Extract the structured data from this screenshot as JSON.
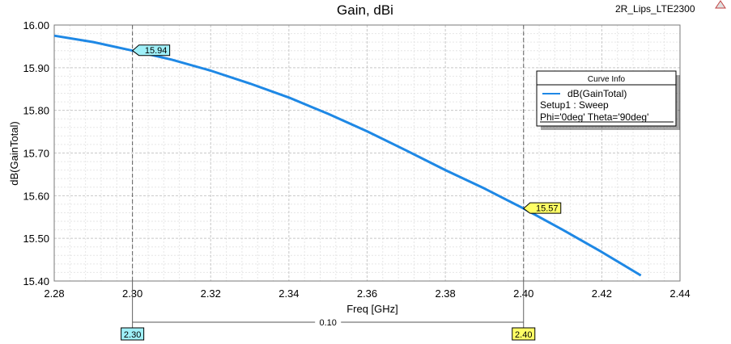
{
  "title": "Gain, dBi",
  "design_name": "2R_Lips_LTE2300",
  "colors": {
    "curve": "#1e88e5",
    "grid_major": "#c8c8c8",
    "grid_minor": "#e6e6e6",
    "marker_1_fill": "#9ff0f8",
    "marker_2_fill": "#ffff66"
  },
  "legend": {
    "header": "Curve Info",
    "curve_name": "dB(GainTotal)",
    "setup": "Setup1 : Sweep",
    "params": "Phi='0deg' Theta='90deg'"
  },
  "markers": [
    {
      "label": "15.94",
      "x": 2.3,
      "y": 15.94,
      "x_label": "2.30"
    },
    {
      "label": "15.57",
      "x": 2.4,
      "y": 15.57,
      "x_label": "2.40"
    }
  ],
  "delta": {
    "label": "0.10"
  },
  "chart_data": {
    "type": "line",
    "title": "Gain, dBi",
    "xlabel": "Freq [GHz]",
    "ylabel": "dB(GainTotal)",
    "xlim": [
      2.28,
      2.44
    ],
    "ylim": [
      15.4,
      16.0
    ],
    "x_ticks": [
      "2.28",
      "2.30",
      "2.32",
      "2.34",
      "2.36",
      "2.38",
      "2.40",
      "2.42",
      "2.44"
    ],
    "y_ticks": [
      "15.40",
      "15.50",
      "15.60",
      "15.70",
      "15.80",
      "15.90",
      "16.00"
    ],
    "grid": true,
    "legend_position": "top-right",
    "series": [
      {
        "name": "dB(GainTotal)",
        "x": [
          2.28,
          2.29,
          2.3,
          2.31,
          2.32,
          2.33,
          2.34,
          2.35,
          2.36,
          2.37,
          2.38,
          2.39,
          2.4,
          2.41,
          2.42,
          2.43
        ],
        "values": [
          15.975,
          15.96,
          15.94,
          15.919,
          15.893,
          15.863,
          15.83,
          15.792,
          15.751,
          15.706,
          15.66,
          15.617,
          15.57,
          15.52,
          15.468,
          15.413
        ]
      }
    ]
  }
}
